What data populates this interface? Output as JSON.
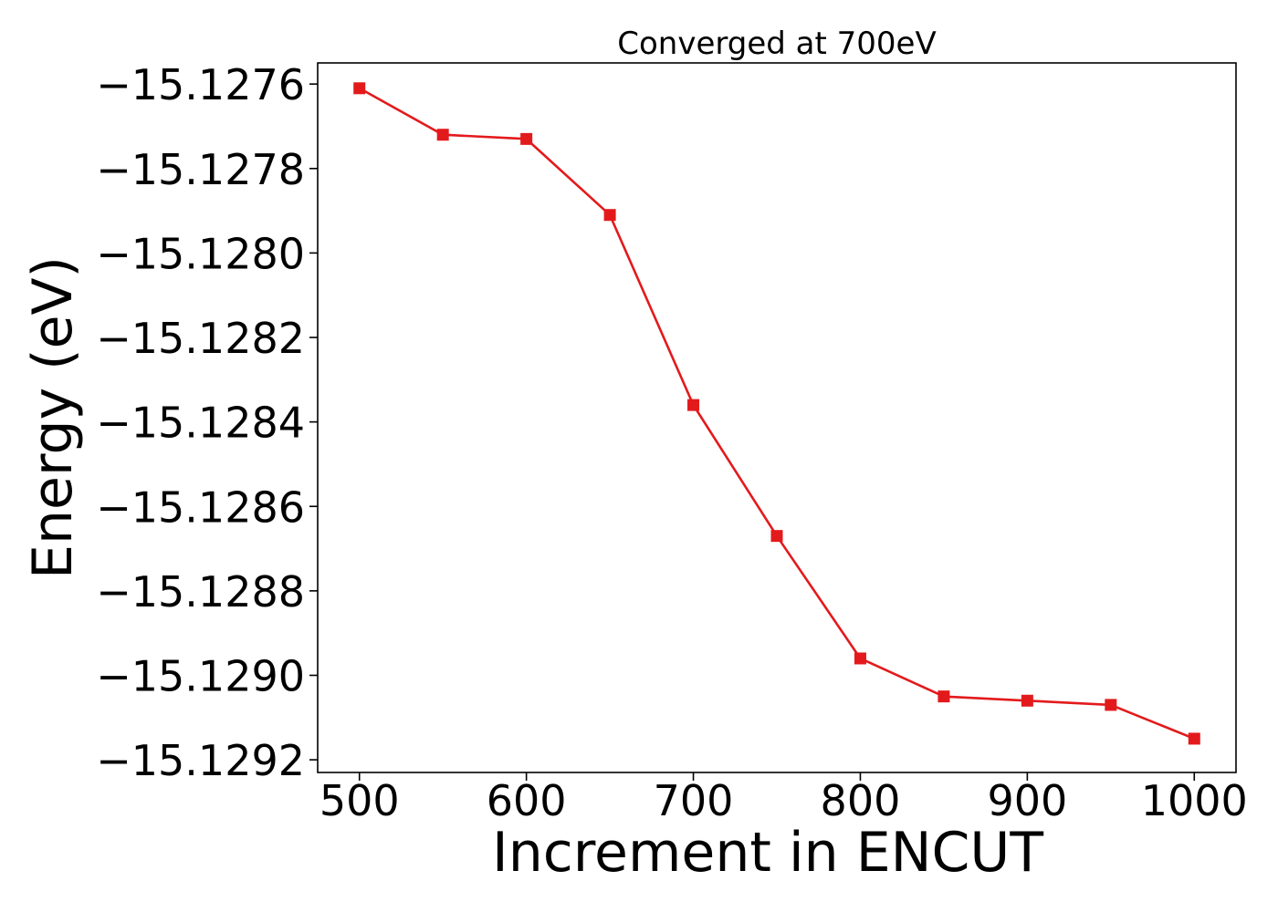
{
  "chart_data": {
    "type": "line",
    "title": "Converged at 700eV",
    "xlabel": "Increment in ENCUT",
    "ylabel": "Energy (eV)",
    "xlim": [
      475,
      1025
    ],
    "ylim": [
      -15.12923,
      -15.12755
    ],
    "x_ticks": [
      500,
      600,
      700,
      800,
      900,
      1000
    ],
    "x_tick_labels": [
      "500",
      "600",
      "700",
      "800",
      "900",
      "1000"
    ],
    "y_ticks": [
      -15.1276,
      -15.1278,
      -15.128,
      -15.1282,
      -15.1284,
      -15.1286,
      -15.1288,
      -15.129,
      -15.1292
    ],
    "y_tick_labels": [
      "−15.1276",
      "−15.1278",
      "−15.1280",
      "−15.1282",
      "−15.1284",
      "−15.1286",
      "−15.1288",
      "−15.1290",
      "−15.1292"
    ],
    "grid": false,
    "marker": "square",
    "series": [
      {
        "color": "#e31a1c",
        "x": [
          500,
          550,
          600,
          650,
          700,
          750,
          800,
          850,
          900,
          950,
          1000
        ],
        "y": [
          -15.12761,
          -15.12772,
          -15.12773,
          -15.12791,
          -15.12836,
          -15.12867,
          -15.12896,
          -15.12905,
          -15.12906,
          -15.12907,
          -15.12915
        ]
      }
    ]
  }
}
